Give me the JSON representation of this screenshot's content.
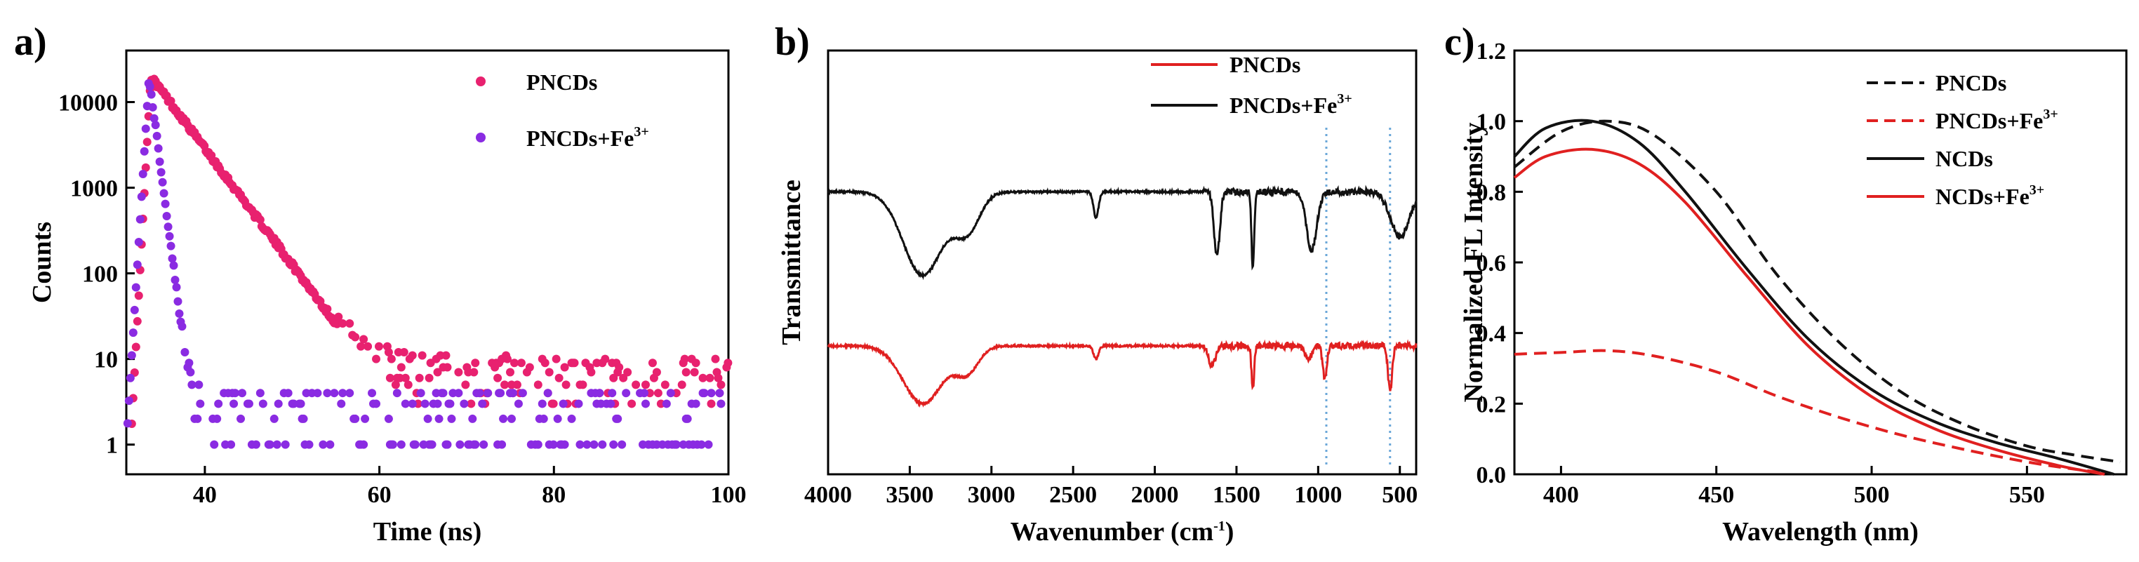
{
  "chart_data": [
    {
      "panel": "a)",
      "type": "scatter",
      "xlabel": "Time (ns)",
      "ylabel": "Counts",
      "yscale": "log",
      "xlim": [
        31,
        100
      ],
      "ylim": [
        0.45,
        40000
      ],
      "xticks": [
        40,
        60,
        80,
        100
      ],
      "yticks": [
        {
          "v": 1,
          "label": "1"
        },
        {
          "v": 10,
          "label": "10"
        },
        {
          "v": 100,
          "label": "100"
        },
        {
          "v": 1000,
          "label": "1000"
        },
        {
          "v": 10000,
          "label": "10000"
        }
      ],
      "legend_position": "top-right",
      "series": [
        {
          "name": "PNCDs",
          "label_main": "PNCDs",
          "label_sup": "",
          "color": "#e8216f",
          "model": {
            "t_rise": 31.5,
            "t_peak": 33.8,
            "peak": 20000,
            "decay_tau": 3.2,
            "background": 6,
            "floor_levels": [
              3,
              4,
              5,
              6,
              7,
              8,
              9,
              10,
              11
            ]
          }
        },
        {
          "name": "PNCDs+Fe3+",
          "label_main": "PNCDs+Fe",
          "label_sup": "3+",
          "color": "#8a2be2",
          "model": {
            "t_rise": 31.0,
            "t_peak": 33.6,
            "peak": 20000,
            "decay_tau": 0.55,
            "background": 2,
            "floor_levels": [
              1,
              2,
              3,
              4,
              5
            ]
          }
        }
      ]
    },
    {
      "panel": "b)",
      "type": "line",
      "xlabel_main": "Wavenumber (cm",
      "xlabel_sup": "-1",
      "xlabel_end": ")",
      "ylabel": "Transmittance",
      "xlim": [
        4000,
        400
      ],
      "xticks": [
        4000,
        3500,
        3000,
        2500,
        2000,
        1500,
        1000,
        500
      ],
      "yaxis": "no tick labels (arbitrary units)",
      "reference_lines": [
        950,
        560
      ],
      "legend_position": "top-right",
      "series": [
        {
          "name": "PNCDs",
          "label_main": "PNCDs",
          "label_sup": "",
          "color": "#e02020",
          "offset": 1.0,
          "absorption_bands": [
            {
              "center": 3420,
              "depth": 0.45,
              "width": 170
            },
            {
              "center": 3150,
              "depth": 0.2,
              "width": 100
            },
            {
              "center": 2360,
              "depth": 0.1,
              "width": 22
            },
            {
              "center": 1650,
              "depth": 0.15,
              "width": 30
            },
            {
              "center": 1400,
              "depth": 0.33,
              "width": 12
            },
            {
              "center": 1060,
              "depth": 0.1,
              "width": 30
            },
            {
              "center": 960,
              "depth": 0.25,
              "width": 18
            },
            {
              "center": 560,
              "depth": 0.35,
              "width": 18
            }
          ]
        },
        {
          "name": "PNCDs+Fe3+",
          "label_main": "PNCDs+Fe",
          "label_sup": "3+",
          "color": "#111111",
          "offset": 2.2,
          "absorption_bands": [
            {
              "center": 3420,
              "depth": 0.65,
              "width": 170
            },
            {
              "center": 3150,
              "depth": 0.3,
              "width": 110
            },
            {
              "center": 2360,
              "depth": 0.2,
              "width": 22
            },
            {
              "center": 1620,
              "depth": 0.5,
              "width": 25
            },
            {
              "center": 1400,
              "depth": 0.6,
              "width": 12
            },
            {
              "center": 1040,
              "depth": 0.45,
              "width": 45
            },
            {
              "center": 500,
              "depth": 0.35,
              "width": 80
            }
          ]
        }
      ]
    },
    {
      "panel": "c)",
      "type": "line",
      "xlabel": "Wavelength (nm)",
      "ylabel": "Normalized FL Intensity",
      "xlim": [
        385,
        582
      ],
      "ylim": [
        0.0,
        1.2
      ],
      "xticks": [
        400,
        450,
        500,
        550
      ],
      "yticks": [
        0.0,
        0.2,
        0.4,
        0.6,
        0.8,
        1.0,
        1.2
      ],
      "legend_position": "top-right",
      "series": [
        {
          "name": "PNCDs",
          "label_main": "PNCDs",
          "label_sup": "",
          "color": "#111111",
          "dash": true,
          "x": [
            385,
            400,
            415,
            430,
            450,
            470,
            490,
            510,
            530,
            550,
            565,
            580
          ],
          "y": [
            0.87,
            0.97,
            1.0,
            0.96,
            0.8,
            0.56,
            0.37,
            0.23,
            0.14,
            0.08,
            0.055,
            0.035
          ]
        },
        {
          "name": "PNCDs+Fe3+",
          "label_main": "PNCDs+Fe",
          "label_sup": "3+",
          "color": "#e02020",
          "dash": true,
          "x": [
            385,
            400,
            415,
            430,
            450,
            470,
            490,
            510,
            530,
            550,
            565,
            575
          ],
          "y": [
            0.34,
            0.345,
            0.35,
            0.335,
            0.29,
            0.22,
            0.16,
            0.11,
            0.07,
            0.035,
            0.015,
            0.005
          ]
        },
        {
          "name": "NCDs",
          "label_main": "NCDs",
          "label_sup": "",
          "color": "#111111",
          "dash": false,
          "x": [
            385,
            395,
            410,
            425,
            440,
            460,
            480,
            500,
            520,
            540,
            560,
            578
          ],
          "y": [
            0.9,
            0.98,
            1.0,
            0.94,
            0.8,
            0.58,
            0.38,
            0.24,
            0.15,
            0.09,
            0.045,
            0.0
          ]
        },
        {
          "name": "NCDs+Fe3+",
          "label_main": "NCDs+Fe",
          "label_sup": "3+",
          "color": "#e02020",
          "dash": false,
          "x": [
            385,
            395,
            410,
            425,
            440,
            460,
            480,
            500,
            520,
            540,
            560,
            575
          ],
          "y": [
            0.84,
            0.9,
            0.92,
            0.88,
            0.77,
            0.56,
            0.36,
            0.22,
            0.13,
            0.07,
            0.025,
            0.0
          ]
        }
      ]
    }
  ]
}
